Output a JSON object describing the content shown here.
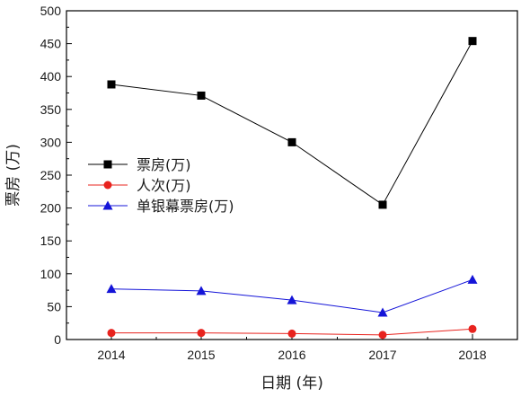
{
  "chart_data": {
    "type": "line",
    "title": "",
    "xlabel": "日期 (年)",
    "ylabel": "票房 (万)",
    "categories": [
      "2014",
      "2015",
      "2016",
      "2017",
      "2018"
    ],
    "ylim": [
      0,
      500
    ],
    "yticks": [
      "0",
      "50",
      "100",
      "150",
      "200",
      "250",
      "300",
      "350",
      "400",
      "450",
      "500"
    ],
    "grid": false,
    "legend_position": "middle-left",
    "series": [
      {
        "name": "票房(万)",
        "values": [
          388,
          371,
          300,
          205,
          454
        ],
        "color": "#000000",
        "marker": "square"
      },
      {
        "name": "人次(万)",
        "values": [
          10,
          10,
          9,
          7,
          16
        ],
        "color": "#e8231e",
        "marker": "circle"
      },
      {
        "name": "单银幕票房(万)",
        "values": [
          77,
          74,
          60,
          41,
          91
        ],
        "color": "#1414d8",
        "marker": "triangle"
      }
    ]
  }
}
